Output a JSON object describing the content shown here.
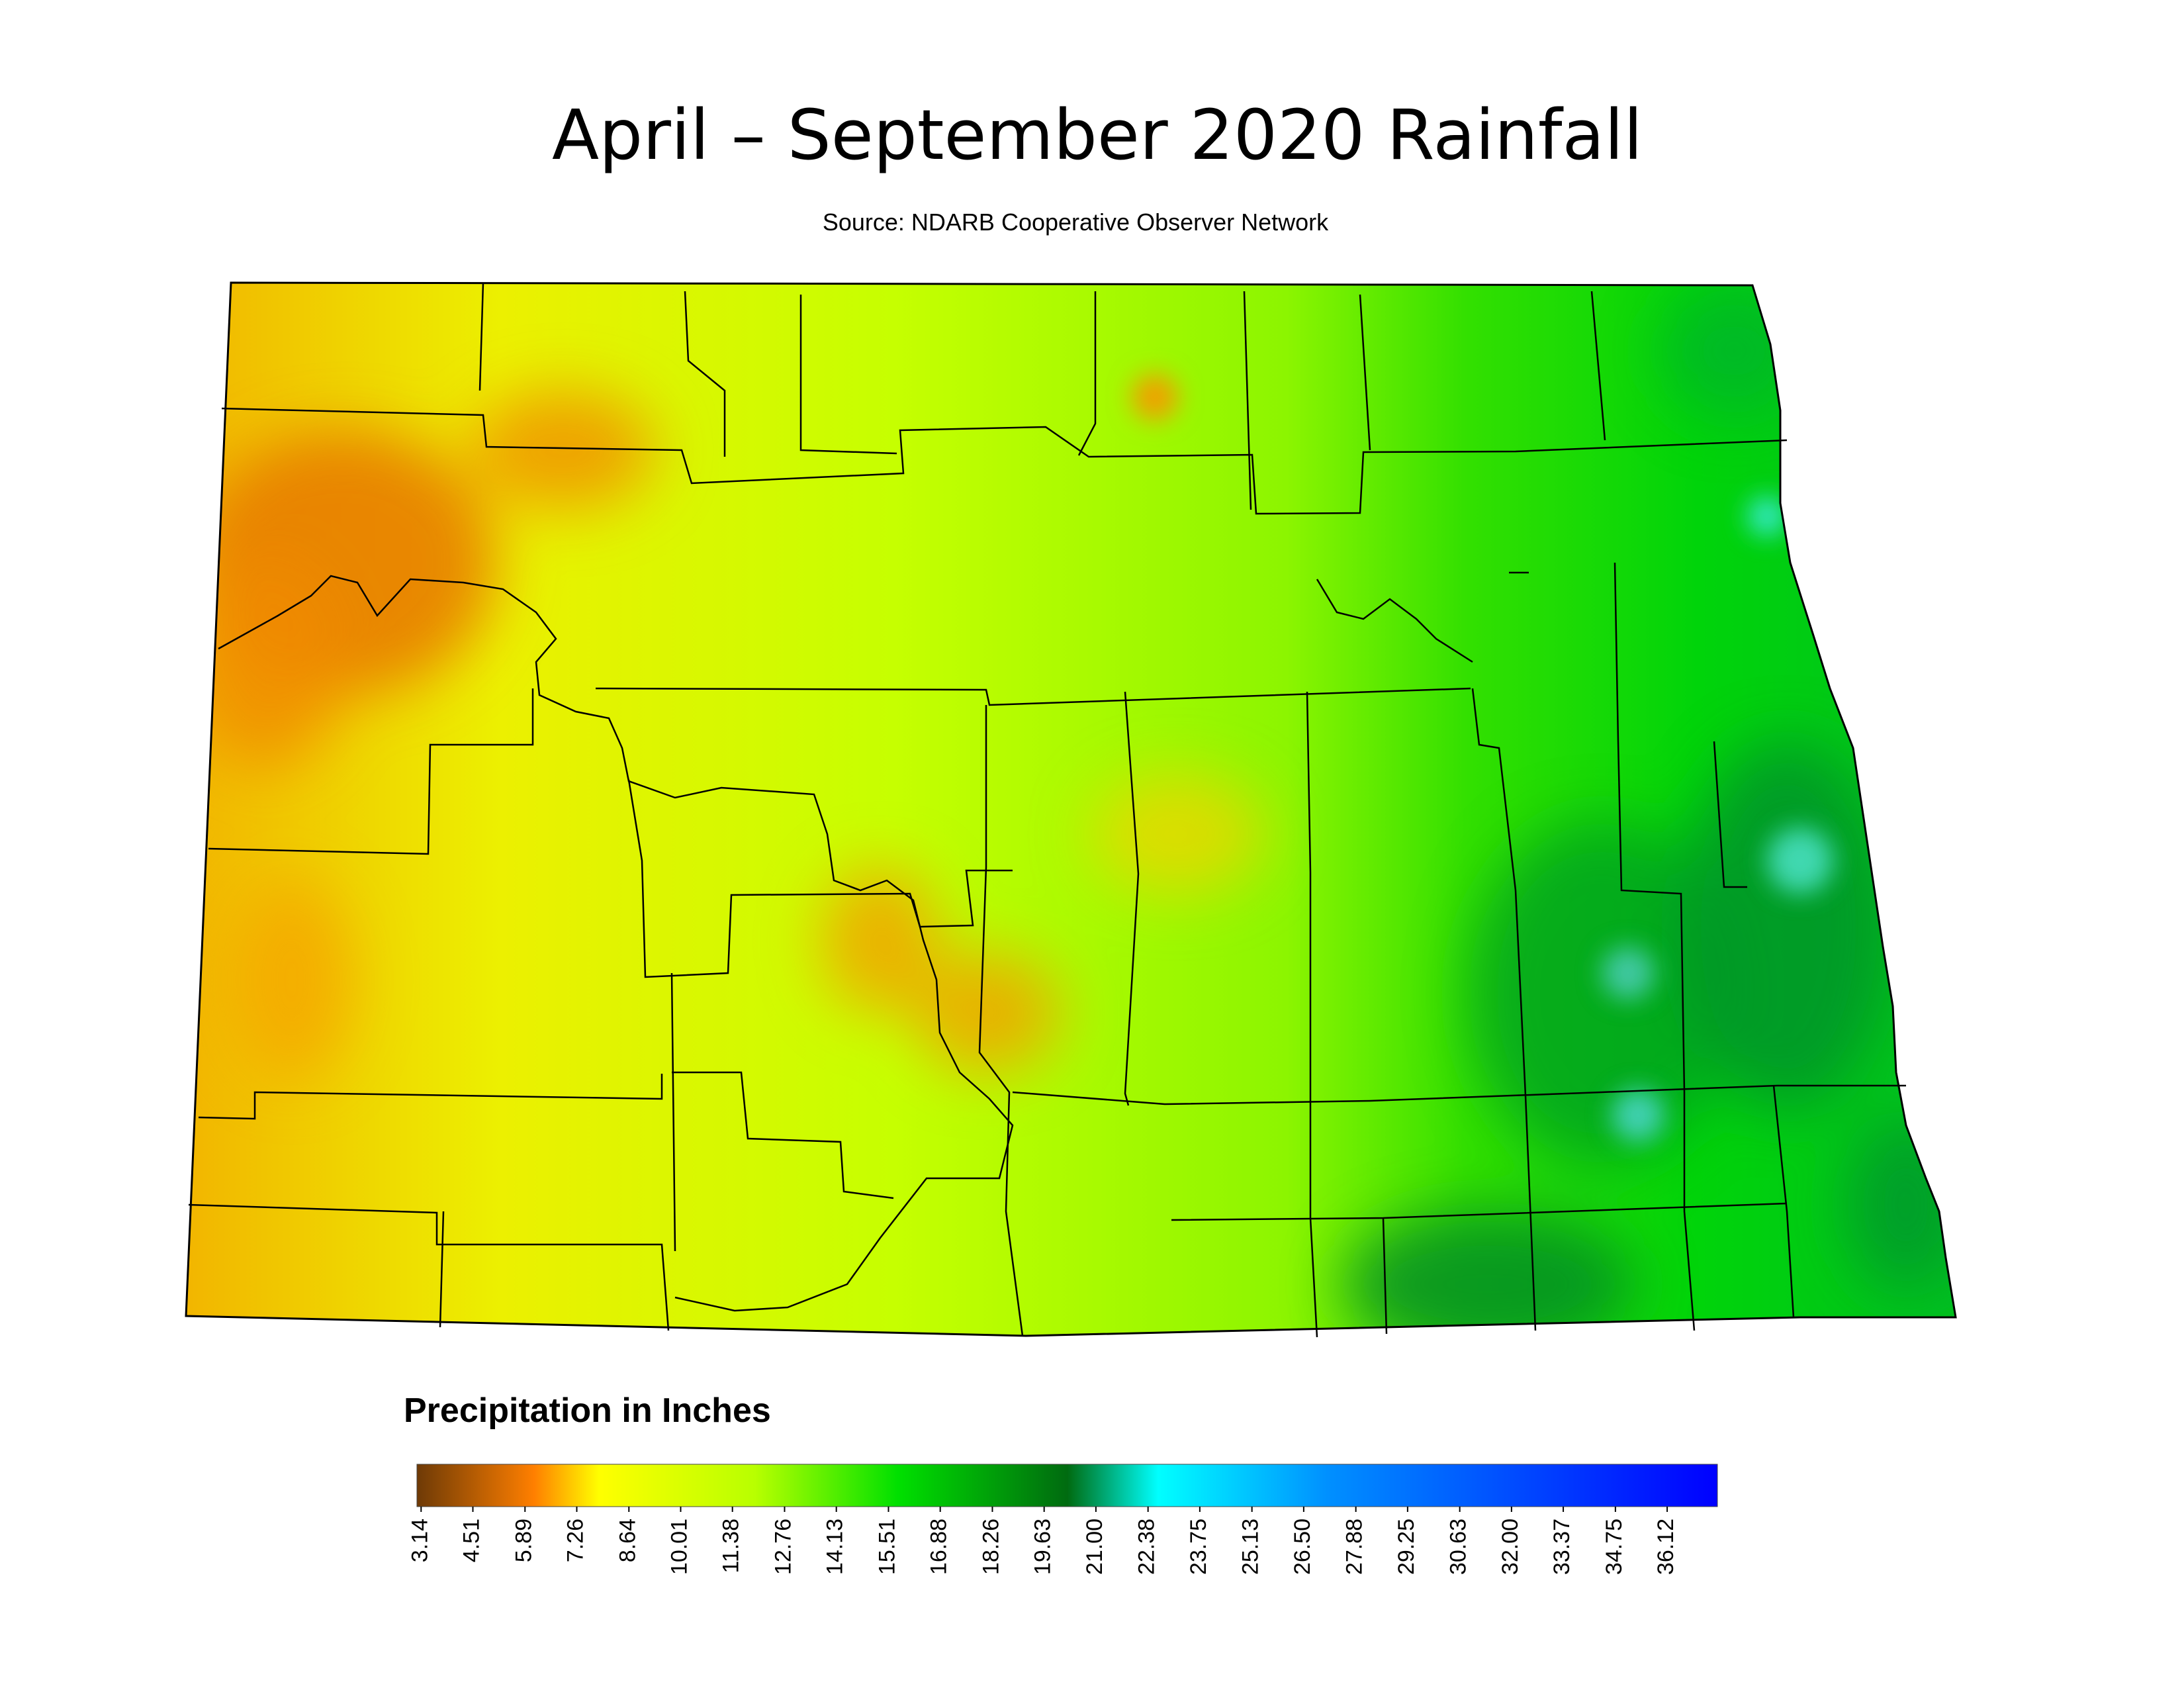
{
  "title": "April – September 2020 Rainfall",
  "subtitle": "Source: NDARB Cooperative Observer Network",
  "legend": {
    "title": "Precipitation in Inches",
    "lim": [
      3.03,
      37.45
    ],
    "colors": [
      "#6e3a06",
      "#ff7f00",
      "#ffff00",
      "#b8ff00",
      "#00e000",
      "#006b10",
      "#00ffff",
      "#0090ff",
      "#0000ff"
    ],
    "ticks": [
      3.14,
      4.51,
      5.89,
      7.26,
      8.64,
      10.01,
      11.38,
      12.76,
      14.13,
      15.51,
      16.88,
      18.26,
      19.63,
      {
        "value": 21,
        "label": "21.00"
      },
      22.38,
      23.75,
      25.13,
      {
        "value": 26.5,
        "label": "26.50"
      },
      27.88,
      29.25,
      30.63,
      {
        "value": 32,
        "label": "32.00"
      },
      33.37,
      34.75,
      36.12
    ]
  }
}
